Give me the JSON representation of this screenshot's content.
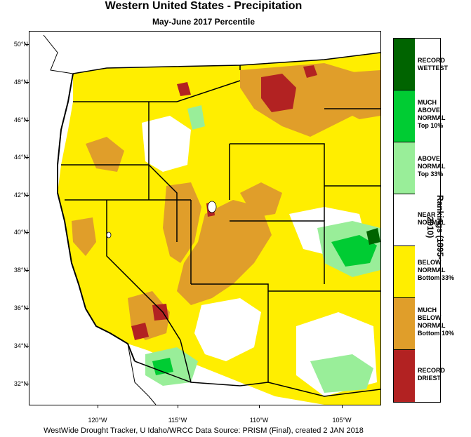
{
  "title": "Western United States - Precipitation",
  "subtitle": "May-June 2017 Percentile",
  "latitude_ticks": [
    "50°N",
    "48°N",
    "46°N",
    "44°N",
    "42°N",
    "40°N",
    "38°N",
    "36°N",
    "34°N",
    "32°N"
  ],
  "longitude_ticks": [
    "120°W",
    "115°W",
    "110°W",
    "105°W"
  ],
  "legend": {
    "axis_title": "Rankings (1895-2010)",
    "items": [
      {
        "lines": [
          "RECORD",
          "WETTEST"
        ],
        "color": "#006400"
      },
      {
        "lines": [
          "MUCH",
          "ABOVE",
          "NORMAL",
          "Top 10%"
        ],
        "color": "#00cc33"
      },
      {
        "lines": [
          "ABOVE",
          "NORMAL",
          "Top 33%"
        ],
        "color": "#99ee99"
      },
      {
        "lines": [
          "NEAR",
          "NORMAL"
        ],
        "color": "#ffffff"
      },
      {
        "lines": [
          "BELOW",
          "NORMAL",
          "Bottom 33%"
        ],
        "color": "#ffee00"
      },
      {
        "lines": [
          "MUCH",
          "BELOW",
          "NORMAL",
          "Bottom 10%"
        ],
        "color": "#e09e2a"
      },
      {
        "lines": [
          "RECORD",
          "DRIEST"
        ],
        "color": "#b22222"
      }
    ]
  },
  "footer": "WestWide Drought Tracker, U Idaho/WRCC Data Source: PRISM (Final), created  2 JAN 2018"
}
